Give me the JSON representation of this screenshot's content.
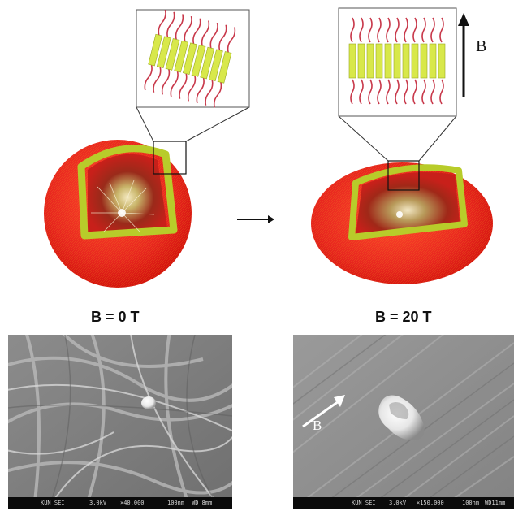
{
  "top": {
    "left_label": "B = 0 T",
    "right_label": "B = 20 T",
    "field_label": "B"
  },
  "sem_left": {
    "instrument": "KUN SEI",
    "voltage": "3.0kV",
    "magnification": "×40,000",
    "scale": "100nm",
    "wd": "WD 8mm"
  },
  "sem_right": {
    "instrument": "KUN SEI",
    "voltage": "3.0kV",
    "magnification": "×150,000",
    "scale": "100nm",
    "wd": "WD11mm",
    "arrow_label": "B"
  },
  "colors": {
    "shell_red": "#e8271f",
    "bilayer_yellow": "#b8cc2a",
    "lipid_head": "#d8e84a",
    "lipid_tail": "#c8384a"
  }
}
